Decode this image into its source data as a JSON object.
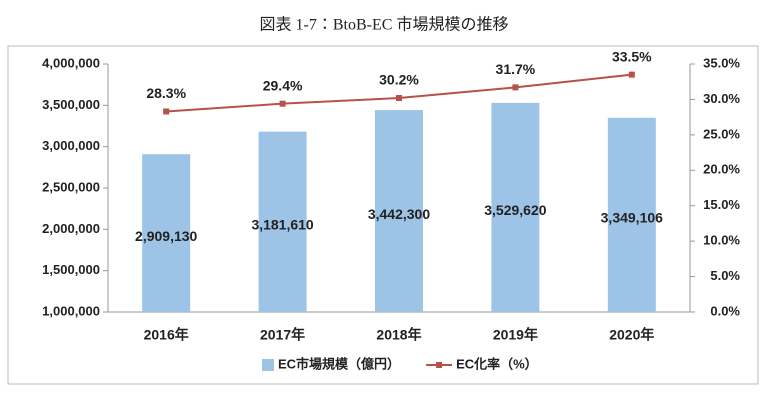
{
  "chart_data": {
    "type": "bar",
    "title": "図表 1-7：BtoB-EC 市場規模の推移",
    "categories": [
      "2016年",
      "2017年",
      "2018年",
      "2019年",
      "2020年"
    ],
    "series": [
      {
        "name": "EC市場規模（億円）",
        "type": "bar",
        "color": "#9dc3e6",
        "values": [
          2909130,
          3181610,
          3442300,
          3529620,
          3349106
        ],
        "value_labels": [
          "2,909,130",
          "3,181,610",
          "3,442,300",
          "3,529,620",
          "3,349,106"
        ]
      },
      {
        "name": "EC化率（%）",
        "type": "line",
        "axis": "y2",
        "color": "#b5524a",
        "values": [
          28.3,
          29.4,
          30.2,
          31.7,
          33.5
        ],
        "value_labels": [
          "28.3%",
          "29.4%",
          "30.2%",
          "31.7%",
          "33.5%"
        ]
      }
    ],
    "ylim": [
      1000000,
      4000000
    ],
    "yticks": [
      {
        "value": 1000000,
        "label": "1,000,000"
      },
      {
        "value": 1500000,
        "label": "1,500,000"
      },
      {
        "value": 2000000,
        "label": "2,000,000"
      },
      {
        "value": 2500000,
        "label": "2,500,000"
      },
      {
        "value": 3000000,
        "label": "3,000,000"
      },
      {
        "value": 3500000,
        "label": "3,500,000"
      },
      {
        "value": 4000000,
        "label": "4,000,000"
      }
    ],
    "y2lim": [
      0,
      35
    ],
    "y2ticks": [
      {
        "value": 0,
        "label": "0.0%"
      },
      {
        "value": 5,
        "label": "5.0%"
      },
      {
        "value": 10,
        "label": "10.0%"
      },
      {
        "value": 15,
        "label": "15.0%"
      },
      {
        "value": 20,
        "label": "20.0%"
      },
      {
        "value": 25,
        "label": "25.0%"
      },
      {
        "value": 30,
        "label": "30.0%"
      },
      {
        "value": 35,
        "label": "35.0%"
      }
    ],
    "grid": false,
    "legend": "bottom"
  }
}
